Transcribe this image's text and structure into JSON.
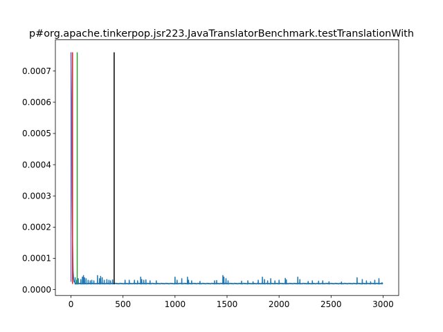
{
  "chart_data": {
    "type": "line",
    "title": "p#org.apache.tinkerpop.jsr223.JavaTranslatorBenchmark.testTranslationWith",
    "xlabel": "",
    "ylabel": "",
    "xlim": [
      -150,
      3150
    ],
    "ylim": [
      -1.9e-05,
      0.0008
    ],
    "x_ticks": [
      0,
      500,
      1000,
      1500,
      2000,
      2500,
      3000
    ],
    "x_tick_labels": [
      "0",
      "500",
      "1000",
      "1500",
      "2000",
      "2500",
      "3000"
    ],
    "y_ticks": [
      0.0,
      0.0001,
      0.0002,
      0.0003,
      0.0004,
      0.0005,
      0.0006,
      0.0007
    ],
    "y_tick_labels": [
      "0.0000",
      "0.0001",
      "0.0002",
      "0.0003",
      "0.0004",
      "0.0005",
      "0.0006",
      "0.0007"
    ],
    "grid": false,
    "series": [
      {
        "color": "#1f77b4",
        "baseline": 1.8e-05,
        "x": [
          0,
          5,
          10,
          15,
          20,
          25,
          30,
          40,
          50,
          60,
          70
        ],
        "y": [
          0.00076,
          0.0006,
          0.00035,
          0.00015,
          6e-05,
          3.5e-05,
          2.5e-05,
          2.2e-05,
          2e-05,
          2e-05,
          1.9e-05
        ],
        "spikes": [
          [
            40,
            3.8e-05
          ],
          [
            55,
            3e-05
          ],
          [
            70,
            3.5e-05
          ],
          [
            95,
            3.2e-05
          ],
          [
            110,
            4e-05
          ],
          [
            120,
            4.5e-05
          ],
          [
            130,
            3.8e-05
          ],
          [
            145,
            3.5e-05
          ],
          [
            165,
            3e-05
          ],
          [
            185,
            2.8e-05
          ],
          [
            200,
            3e-05
          ],
          [
            220,
            2.8e-05
          ],
          [
            255,
            4.5e-05
          ],
          [
            275,
            3.5e-05
          ],
          [
            285,
            4.2e-05
          ],
          [
            300,
            3.8e-05
          ],
          [
            320,
            3e-05
          ],
          [
            345,
            3.2e-05
          ],
          [
            365,
            3e-05
          ],
          [
            380,
            2.8e-05
          ],
          [
            400,
            3.1e-05
          ],
          [
            520,
            3e-05
          ],
          [
            560,
            3e-05
          ],
          [
            610,
            3e-05
          ],
          [
            640,
            2.8e-05
          ],
          [
            670,
            4e-05
          ],
          [
            680,
            3.2e-05
          ],
          [
            700,
            3e-05
          ],
          [
            720,
            3.1e-05
          ],
          [
            760,
            2.8e-05
          ],
          [
            820,
            2.8e-05
          ],
          [
            1000,
            4e-05
          ],
          [
            1020,
            3e-05
          ],
          [
            1065,
            3.5e-05
          ],
          [
            1120,
            4e-05
          ],
          [
            1130,
            3e-05
          ],
          [
            1160,
            2.8e-05
          ],
          [
            1240,
            2.6e-05
          ],
          [
            1380,
            2.8e-05
          ],
          [
            1400,
            2.9e-05
          ],
          [
            1460,
            4.5e-05
          ],
          [
            1470,
            4e-05
          ],
          [
            1490,
            3.5e-05
          ],
          [
            1510,
            2.8e-05
          ],
          [
            1640,
            2.7e-05
          ],
          [
            1700,
            2.8e-05
          ],
          [
            1750,
            2.5e-05
          ],
          [
            1800,
            3e-05
          ],
          [
            1840,
            4e-05
          ],
          [
            1860,
            3.2e-05
          ],
          [
            1890,
            2.8e-05
          ],
          [
            1920,
            3.5e-05
          ],
          [
            1960,
            2.8e-05
          ],
          [
            2000,
            3e-05
          ],
          [
            2060,
            3.6e-05
          ],
          [
            2070,
            3.1e-05
          ],
          [
            2180,
            4e-05
          ],
          [
            2200,
            3.2e-05
          ],
          [
            2280,
            2.6e-05
          ],
          [
            2320,
            2.8e-05
          ],
          [
            2380,
            2.7e-05
          ],
          [
            2420,
            2.8e-05
          ],
          [
            2480,
            2.5e-05
          ],
          [
            2600,
            2.4e-05
          ],
          [
            2750,
            3.8e-05
          ],
          [
            2800,
            3.2e-05
          ],
          [
            2840,
            2.8e-05
          ],
          [
            2880,
            2.5e-05
          ],
          [
            2920,
            3e-05
          ],
          [
            2960,
            3.5e-05
          ],
          [
            2990,
            2.2e-05
          ]
        ]
      }
    ],
    "vertical_lines": [
      {
        "x": 0,
        "ymin": 2.5e-05,
        "ymax": 0.00076,
        "color": "#9467bd"
      },
      {
        "x": 15,
        "ymin": 1.8e-05,
        "ymax": 0.00076,
        "color": "#d62728"
      },
      {
        "x": 60,
        "ymin": 1.8e-05,
        "ymax": 0.00076,
        "color": "#2ca02c"
      },
      {
        "x": 415,
        "ymin": 1.8e-05,
        "ymax": 0.00076,
        "color": "#000000"
      }
    ]
  }
}
